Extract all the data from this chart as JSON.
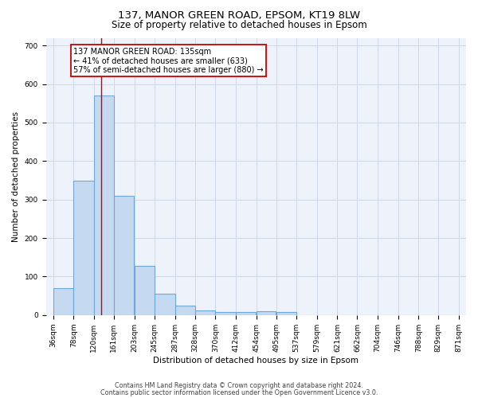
{
  "title1": "137, MANOR GREEN ROAD, EPSOM, KT19 8LW",
  "title2": "Size of property relative to detached houses in Epsom",
  "xlabel": "Distribution of detached houses by size in Epsom",
  "ylabel": "Number of detached properties",
  "footnote1": "Contains HM Land Registry data © Crown copyright and database right 2024.",
  "footnote2": "Contains public sector information licensed under the Open Government Licence v3.0.",
  "annotation_line1": "137 MANOR GREEN ROAD: 135sqm",
  "annotation_line2": "← 41% of detached houses are smaller (633)",
  "annotation_line3": "57% of semi-detached houses are larger (880) →",
  "bar_edges": [
    36,
    78,
    120,
    161,
    203,
    245,
    287,
    328,
    370,
    412,
    454,
    495,
    537,
    579,
    621,
    662,
    704,
    746,
    788,
    829,
    871
  ],
  "bar_heights": [
    70,
    350,
    570,
    310,
    127,
    55,
    25,
    12,
    8,
    7,
    10,
    8,
    0,
    0,
    0,
    0,
    0,
    0,
    0,
    0
  ],
  "bar_color": "#c5d9f0",
  "bar_edge_color": "#6fa8d6",
  "bar_linewidth": 0.8,
  "red_line_x": 135,
  "red_line_color": "#cc0000",
  "grid_color": "#d0d8e8",
  "bg_color": "#eef3fb",
  "ylim": [
    0,
    720
  ],
  "yticks": [
    0,
    100,
    200,
    300,
    400,
    500,
    600,
    700
  ],
  "title1_fontsize": 9.5,
  "title2_fontsize": 8.5,
  "tick_fontsize": 6.5,
  "axis_label_fontsize": 7.5,
  "annotation_fontsize": 7,
  "footnote_fontsize": 5.8
}
